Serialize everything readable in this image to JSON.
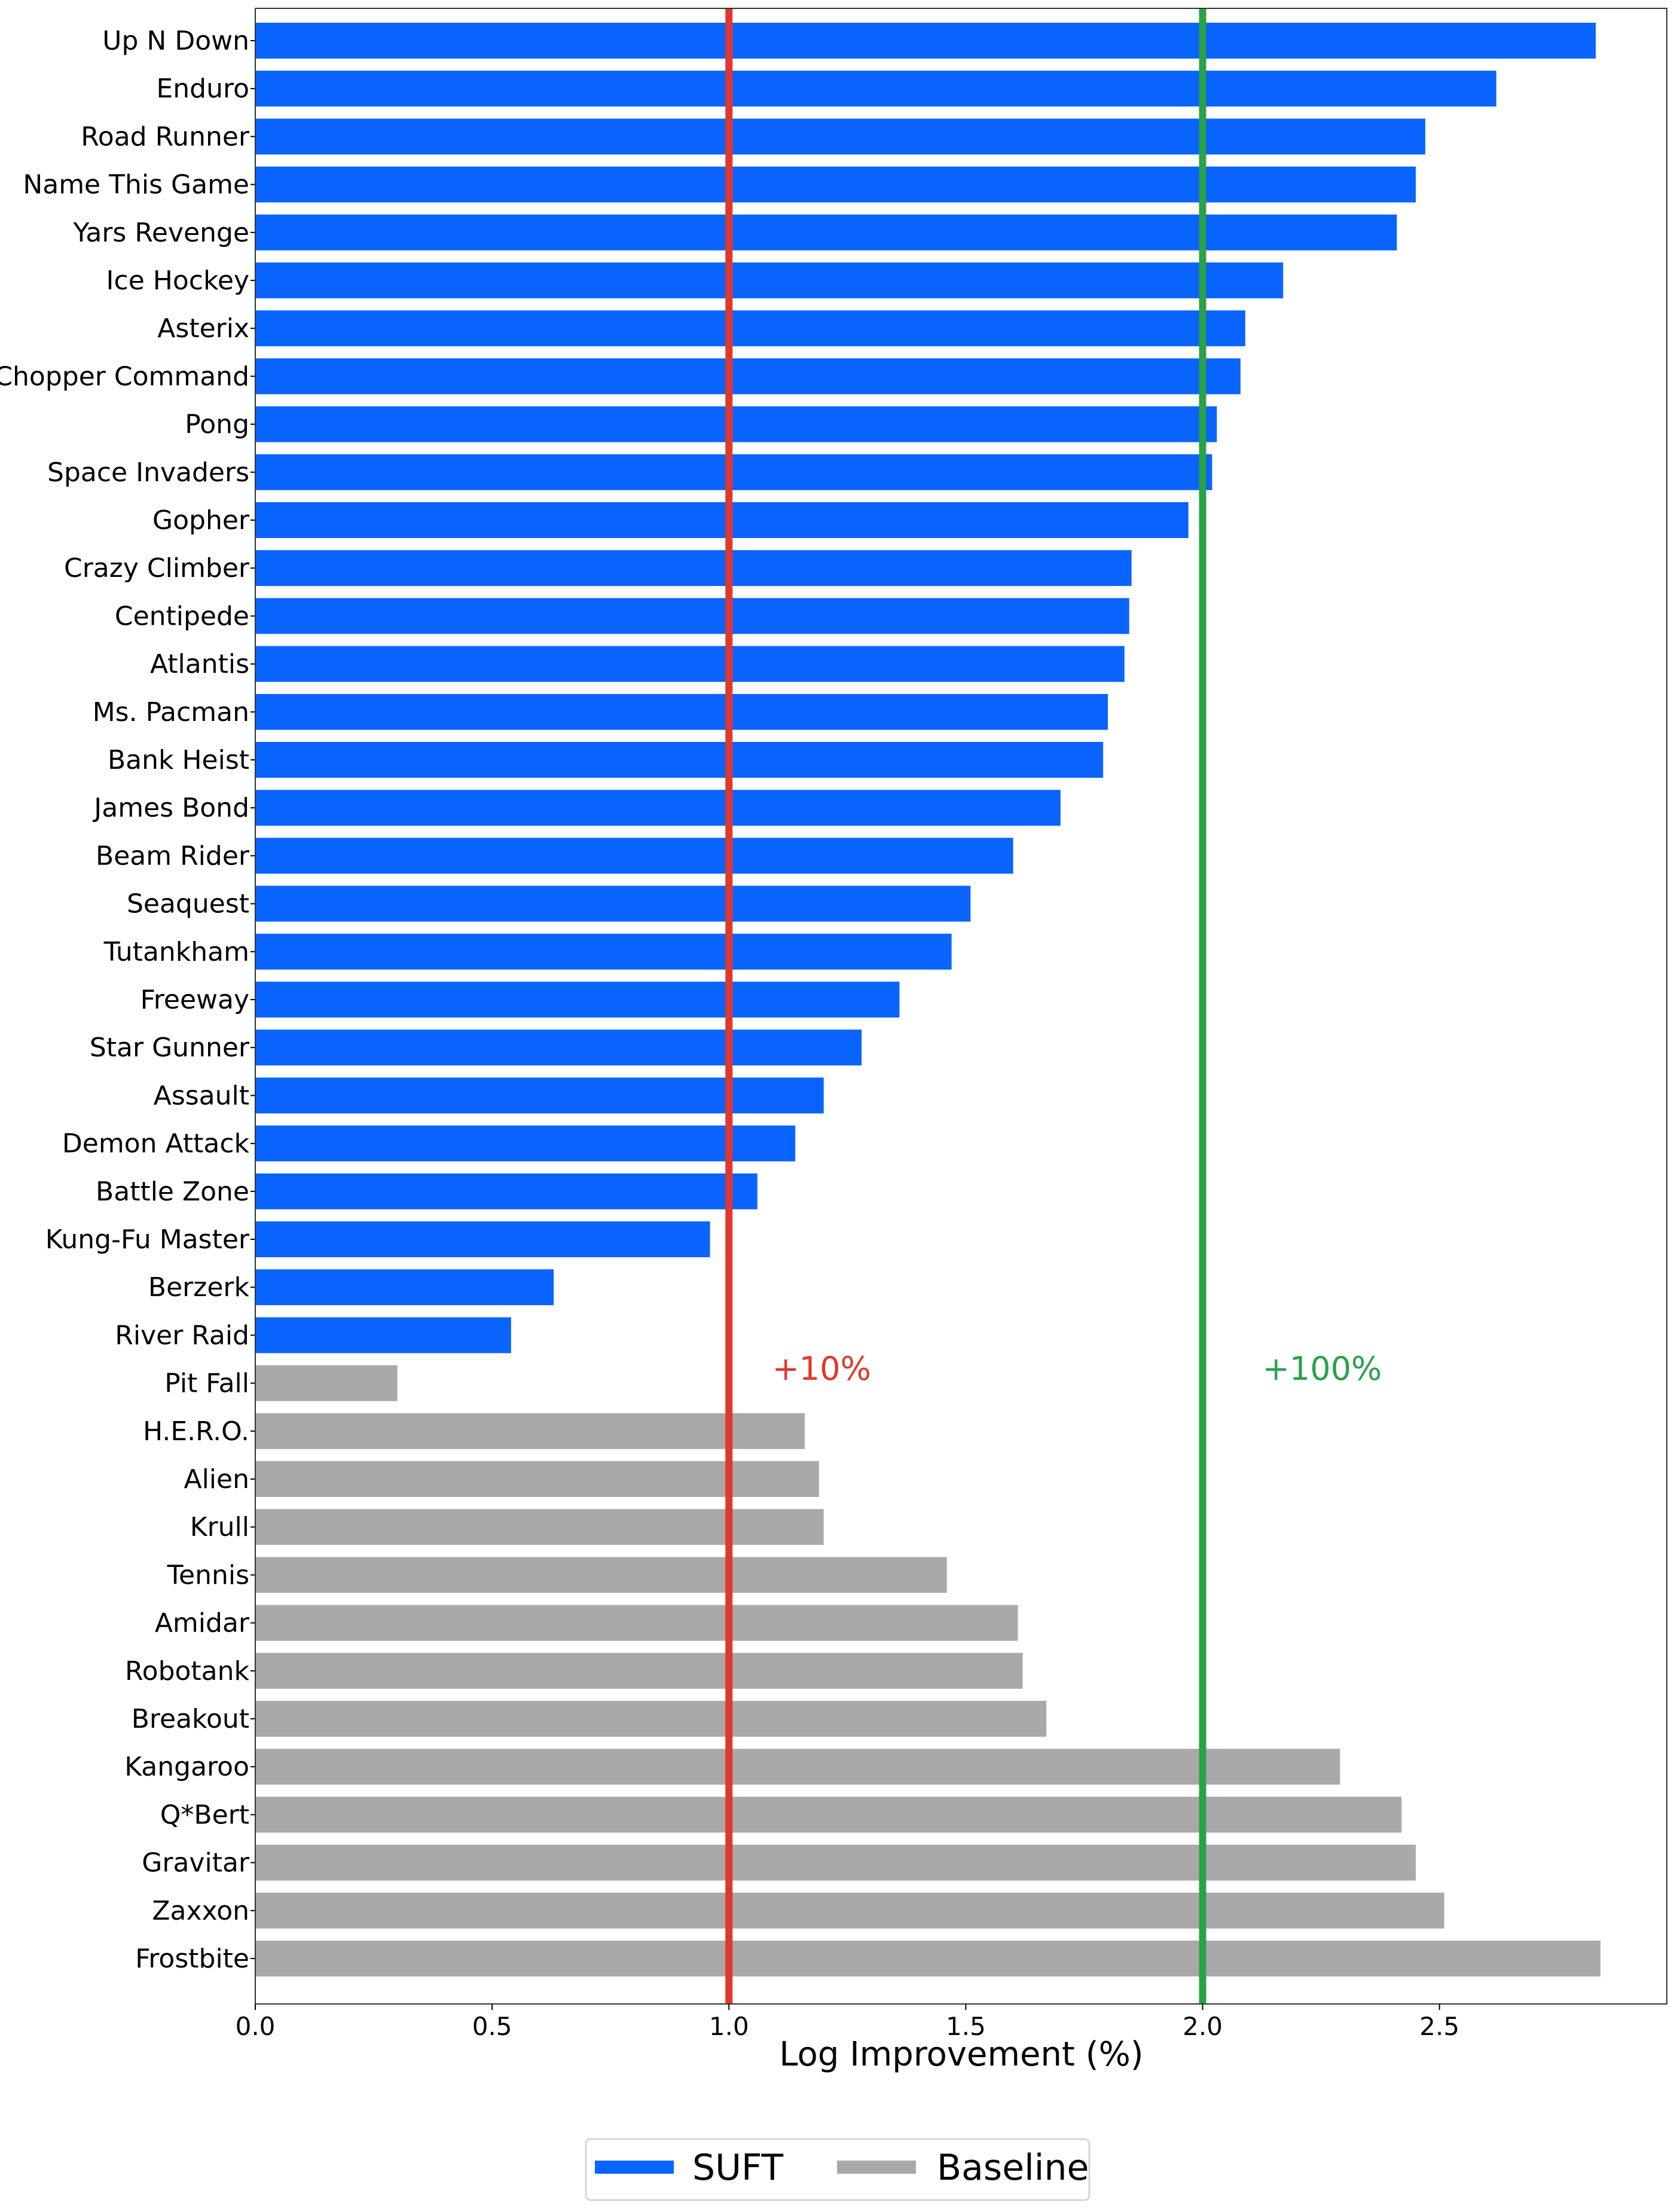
{
  "chart_data": {
    "type": "bar",
    "orientation": "horizontal",
    "xlabel": "Log Improvement (%)",
    "ylabel": "",
    "title": "",
    "xlim": [
      0,
      2.98
    ],
    "xticks": [
      0.0,
      0.5,
      1.0,
      1.5,
      2.0,
      2.5
    ],
    "xtick_labels": [
      "0.0",
      "0.5",
      "1.0",
      "1.5",
      "2.0",
      "2.5"
    ],
    "grid": false,
    "legend_position": "bottom-center",
    "reference_lines": [
      {
        "x": 1.0,
        "label": "+10%",
        "color": "#e0382e"
      },
      {
        "x": 2.0,
        "label": "+100%",
        "color": "#2aa24a"
      }
    ],
    "series": [
      {
        "name": "SUFT",
        "color": "#0a64ff"
      },
      {
        "name": "Baseline",
        "color": "#a9a9a9"
      }
    ],
    "bars": [
      {
        "category": "Up N Down",
        "value": 2.83,
        "series": "SUFT"
      },
      {
        "category": "Enduro",
        "value": 2.62,
        "series": "SUFT"
      },
      {
        "category": "Road Runner",
        "value": 2.47,
        "series": "SUFT"
      },
      {
        "category": "Name This Game",
        "value": 2.45,
        "series": "SUFT"
      },
      {
        "category": "Yars Revenge",
        "value": 2.41,
        "series": "SUFT"
      },
      {
        "category": "Ice Hockey",
        "value": 2.17,
        "series": "SUFT"
      },
      {
        "category": "Asterix",
        "value": 2.09,
        "series": "SUFT"
      },
      {
        "category": "Chopper Command",
        "value": 2.08,
        "series": "SUFT"
      },
      {
        "category": "Pong",
        "value": 2.03,
        "series": "SUFT"
      },
      {
        "category": "Space Invaders",
        "value": 2.02,
        "series": "SUFT"
      },
      {
        "category": "Gopher",
        "value": 1.97,
        "series": "SUFT"
      },
      {
        "category": "Crazy Climber",
        "value": 1.85,
        "series": "SUFT"
      },
      {
        "category": "Centipede",
        "value": 1.845,
        "series": "SUFT"
      },
      {
        "category": "Atlantis",
        "value": 1.835,
        "series": "SUFT"
      },
      {
        "category": "Ms. Pacman",
        "value": 1.8,
        "series": "SUFT"
      },
      {
        "category": "Bank Heist",
        "value": 1.79,
        "series": "SUFT"
      },
      {
        "category": "James Bond",
        "value": 1.7,
        "series": "SUFT"
      },
      {
        "category": "Beam Rider",
        "value": 1.6,
        "series": "SUFT"
      },
      {
        "category": "Seaquest",
        "value": 1.51,
        "series": "SUFT"
      },
      {
        "category": "Tutankham",
        "value": 1.47,
        "series": "SUFT"
      },
      {
        "category": "Freeway",
        "value": 1.36,
        "series": "SUFT"
      },
      {
        "category": "Star Gunner",
        "value": 1.28,
        "series": "SUFT"
      },
      {
        "category": "Assault",
        "value": 1.2,
        "series": "SUFT"
      },
      {
        "category": "Demon Attack",
        "value": 1.14,
        "series": "SUFT"
      },
      {
        "category": "Battle Zone",
        "value": 1.06,
        "series": "SUFT"
      },
      {
        "category": "Kung-Fu Master",
        "value": 0.96,
        "series": "SUFT"
      },
      {
        "category": "Berzerk",
        "value": 0.63,
        "series": "SUFT"
      },
      {
        "category": "River Raid",
        "value": 0.54,
        "series": "SUFT"
      },
      {
        "category": "Pit Fall",
        "value": 0.3,
        "series": "Baseline"
      },
      {
        "category": "H.E.R.O.",
        "value": 1.16,
        "series": "Baseline"
      },
      {
        "category": "Alien",
        "value": 1.19,
        "series": "Baseline"
      },
      {
        "category": "Krull",
        "value": 1.2,
        "series": "Baseline"
      },
      {
        "category": "Tennis",
        "value": 1.46,
        "series": "Baseline"
      },
      {
        "category": "Amidar",
        "value": 1.61,
        "series": "Baseline"
      },
      {
        "category": "Robotank",
        "value": 1.62,
        "series": "Baseline"
      },
      {
        "category": "Breakout",
        "value": 1.67,
        "series": "Baseline"
      },
      {
        "category": "Kangaroo",
        "value": 2.29,
        "series": "Baseline"
      },
      {
        "category": "Q*Bert",
        "value": 2.42,
        "series": "Baseline"
      },
      {
        "category": "Gravitar",
        "value": 2.45,
        "series": "Baseline"
      },
      {
        "category": "Zaxxon",
        "value": 2.51,
        "series": "Baseline"
      },
      {
        "category": "Frostbite",
        "value": 2.84,
        "series": "Baseline"
      }
    ]
  }
}
